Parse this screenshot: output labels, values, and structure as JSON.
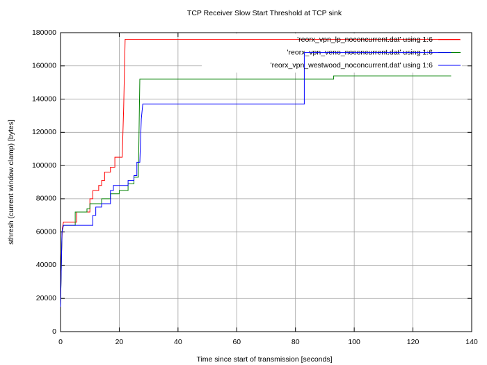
{
  "chart_data": {
    "type": "line",
    "title": "TCP Receiver Slow Start Threshold at TCP sink",
    "x_label": "Time since start of transmission [seconds]",
    "y_label": "sthresh (current window clamp) [bytes]",
    "xlim": [
      0,
      140
    ],
    "xticks": [
      0,
      20,
      40,
      60,
      80,
      100,
      120,
      140
    ],
    "ylim": [
      0,
      180000
    ],
    "yticks": [
      0,
      20000,
      40000,
      60000,
      80000,
      100000,
      120000,
      140000,
      160000,
      180000
    ],
    "grid": true,
    "legend": "upper-right",
    "series": [
      {
        "name": "'reorx_vpn_lp_noconcurrent.dat' using 1:6",
        "color": "#ff0000",
        "x": [
          0,
          0.3,
          0.6,
          1,
          5.5,
          5.5,
          10,
          10,
          11,
          11,
          13,
          13,
          14,
          14,
          15,
          15,
          17,
          17,
          18.5,
          18.5,
          21,
          21.5,
          22,
          136
        ],
        "values": [
          15000,
          45000,
          62000,
          66000,
          66000,
          72000,
          72000,
          80000,
          80000,
          85000,
          85000,
          88000,
          88000,
          91000,
          91000,
          96000,
          96000,
          99000,
          99000,
          105000,
          105000,
          135000,
          176000,
          176000
        ]
      },
      {
        "name": "'reorx_vpn_veno_noconcurrent.dat' using 1:6",
        "color": "#008000",
        "x": [
          0,
          0.5,
          1,
          5,
          5,
          9,
          9,
          10,
          10,
          14,
          14,
          17,
          17,
          20,
          20,
          23,
          23,
          25,
          25,
          26.5,
          27,
          93,
          93,
          133
        ],
        "values": [
          15000,
          60000,
          64000,
          64000,
          72000,
          72000,
          74000,
          74000,
          77000,
          77000,
          80000,
          80000,
          83000,
          83000,
          85000,
          85000,
          89000,
          89000,
          93000,
          93000,
          152000,
          152000,
          154000,
          154000
        ]
      },
      {
        "name": "'reorx_vpn_westwood_noconcurrent.dat' using 1:6",
        "color": "#0000ff",
        "x": [
          0,
          0.5,
          1,
          11,
          11,
          12,
          12,
          14,
          14,
          17,
          17,
          18,
          18,
          23,
          23,
          25,
          25,
          26,
          26,
          27,
          27.5,
          28,
          83,
          83,
          133
        ],
        "values": [
          15000,
          60000,
          64000,
          64000,
          70000,
          70000,
          75000,
          75000,
          77000,
          77000,
          85000,
          85000,
          88000,
          88000,
          91000,
          91000,
          94000,
          94000,
          102000,
          102000,
          128000,
          137000,
          137000,
          168000,
          168000
        ]
      }
    ]
  }
}
